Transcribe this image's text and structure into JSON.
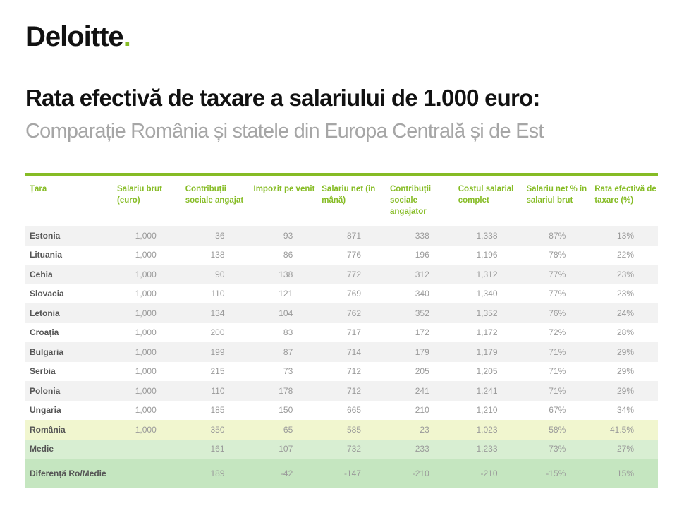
{
  "logo": {
    "text": "Deloitte",
    "dot": "."
  },
  "title": "Rata efectivă de taxare a salariului de 1.000 euro:",
  "subtitle": "Comparație România și statele din Europa Centrală și de Est",
  "accent": "#86bc25",
  "table": {
    "headers": [
      "Țara",
      "Salariu brut (euro)",
      "Contribuții sociale angajat",
      "Impozit pe venit",
      "Salariu net (în mână)",
      "Contribuții sociale angajator",
      "Costul salarial complet",
      "Salariu net % în salariul brut",
      "Rata efectivă de taxare (%)"
    ],
    "rows": [
      [
        "Estonia",
        "1,000",
        "36",
        "93",
        "871",
        "338",
        "1,338",
        "87%",
        "13%"
      ],
      [
        "Lituania",
        "1,000",
        "138",
        "86",
        "776",
        "196",
        "1,196",
        "78%",
        "22%"
      ],
      [
        "Cehia",
        "1,000",
        "90",
        "138",
        "772",
        "312",
        "1,312",
        "77%",
        "23%"
      ],
      [
        "Slovacia",
        "1,000",
        "110",
        "121",
        "769",
        "340",
        "1,340",
        "77%",
        "23%"
      ],
      [
        "Letonia",
        "1,000",
        "134",
        "104",
        "762",
        "352",
        "1,352",
        "76%",
        "24%"
      ],
      [
        "Croația",
        "1,000",
        "200",
        "83",
        "717",
        "172",
        "1,172",
        "72%",
        "28%"
      ],
      [
        "Bulgaria",
        "1,000",
        "199",
        "87",
        "714",
        "179",
        "1,179",
        "71%",
        "29%"
      ],
      [
        "Serbia",
        "1,000",
        "215",
        "73",
        "712",
        "205",
        "1,205",
        "71%",
        "29%"
      ],
      [
        "Polonia",
        "1,000",
        "110",
        "178",
        "712",
        "241",
        "1,241",
        "71%",
        "29%"
      ],
      [
        "Ungaria",
        "1,000",
        "185",
        "150",
        "665",
        "210",
        "1,210",
        "67%",
        "34%"
      ],
      [
        "România",
        "1,000",
        "350",
        "65",
        "585",
        "23",
        "1,023",
        "58%",
        "41.5%"
      ],
      [
        "Medie",
        "",
        "161",
        "107",
        "732",
        "233",
        "1,233",
        "73%",
        "27%"
      ],
      [
        "Diferență Ro/Medie",
        "",
        "189",
        "-42",
        "-147",
        "-210",
        "-210",
        "-15%",
        "15%"
      ]
    ]
  }
}
